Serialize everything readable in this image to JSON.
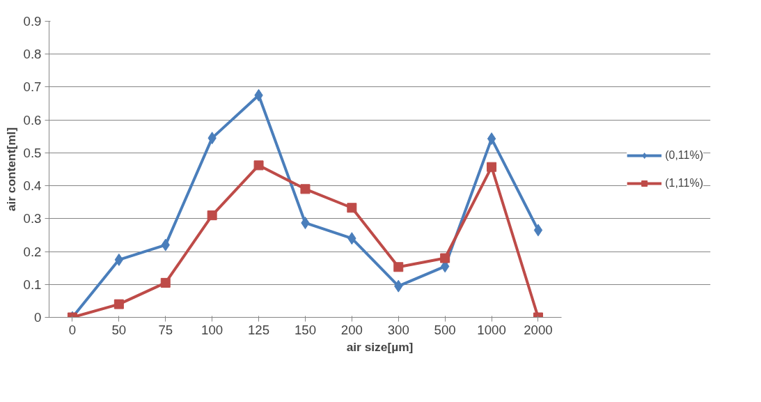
{
  "chart_data": {
    "type": "line",
    "xlabel": "air size[µm]",
    "ylabel": "air content[ml]",
    "categories": [
      "0",
      "50",
      "75",
      "100",
      "125",
      "150",
      "200",
      "300",
      "500",
      "1000",
      "2000"
    ],
    "ylim": [
      0,
      0.9
    ],
    "yticks": [
      0,
      0.1,
      0.2,
      0.3,
      0.4,
      0.5,
      0.6,
      0.7,
      0.8,
      0.9
    ],
    "grid": "y",
    "legend": "right",
    "line_style": "solid",
    "series": [
      {
        "name": "(0,11%)",
        "color": "#4a7ebb",
        "marker": "diamond",
        "values": [
          0,
          0.175,
          0.22,
          0.545,
          0.675,
          0.287,
          0.24,
          0.095,
          0.155,
          0.543,
          0.265
        ]
      },
      {
        "name": "(1,11%)",
        "color": "#be4b48",
        "marker": "square",
        "values": [
          0,
          0.04,
          0.105,
          0.31,
          0.462,
          0.39,
          0.333,
          0.153,
          0.18,
          0.457,
          0
        ]
      }
    ]
  }
}
